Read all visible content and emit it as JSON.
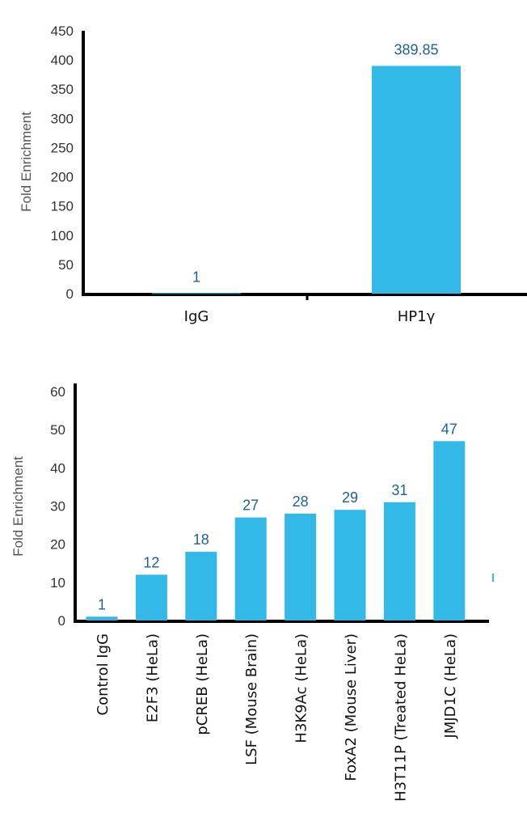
{
  "chart_data": [
    {
      "type": "bar",
      "categories": [
        "IgG",
        "HP1γ"
      ],
      "values": [
        1,
        389.85
      ],
      "data_labels": [
        "1",
        "389.85"
      ],
      "xlabel": "",
      "ylabel": "Fold Enrichment",
      "ylim": [
        0,
        450
      ],
      "yticks": [
        "0",
        "50",
        "100",
        "150",
        "200",
        "250",
        "300",
        "350",
        "400",
        "450"
      ],
      "grid": false,
      "colors": {
        "bar": "#33b9e8",
        "label": "#1f5f99",
        "axis": "#000000"
      }
    },
    {
      "type": "bar",
      "categories": [
        "Control IgG",
        "E2F3 (HeLa)",
        "pCREB (HeLa)",
        "LSF (Mouse Brain)",
        "H3K9Ac (HeLa)",
        "FoxA2 (Mouse Liver)",
        "H3T11P (Treated HeLa)",
        "JMJD1C (HeLa)"
      ],
      "values": [
        1,
        12,
        18,
        27,
        28,
        29,
        31,
        47
      ],
      "data_labels": [
        "1",
        "12",
        "18",
        "27",
        "28",
        "29",
        "31",
        "47"
      ],
      "xlabel": "",
      "ylabel": "Fold Enrichment",
      "ylim": [
        0,
        60
      ],
      "yticks": [
        "0",
        "10",
        "20",
        "30",
        "40",
        "50",
        "60"
      ],
      "grid": false,
      "colors": {
        "bar": "#33b9e8",
        "label": "#1f5f99",
        "axis": "#000000"
      }
    }
  ]
}
